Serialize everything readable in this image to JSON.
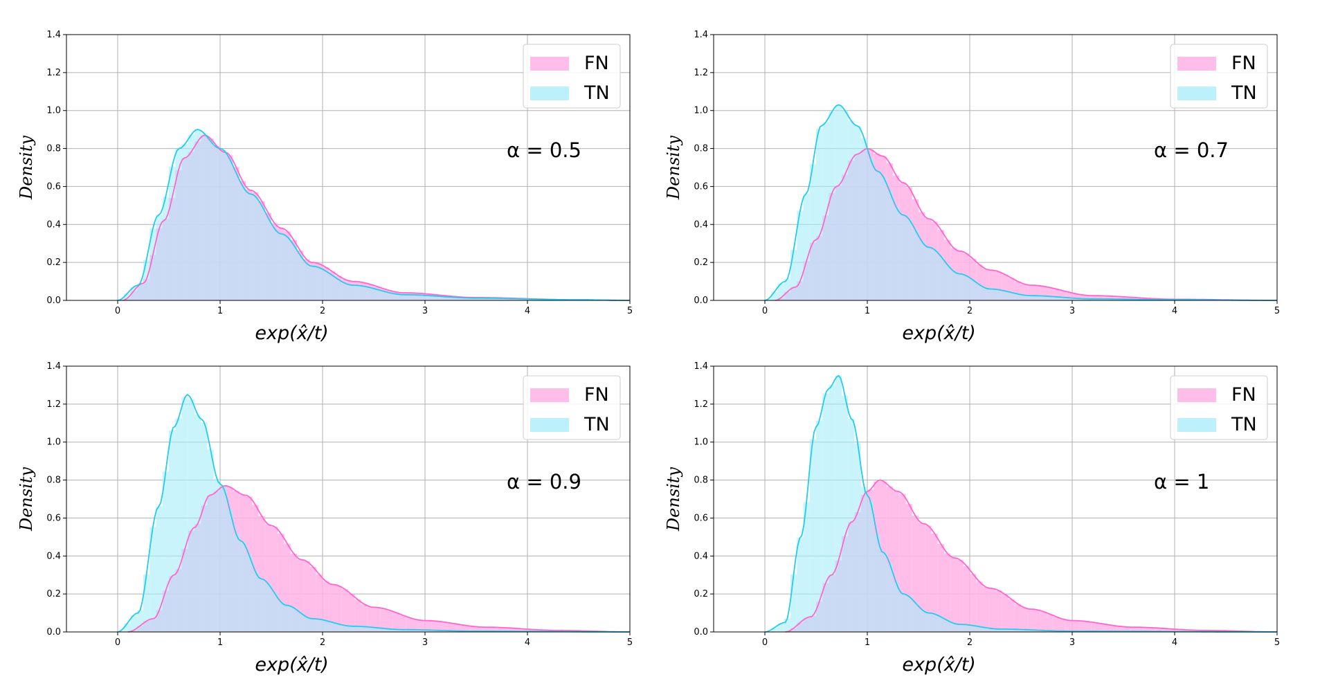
{
  "chart_data": [
    {
      "type": "histogram",
      "xlabel": "exp(x̂/t)",
      "ylabel": "Density",
      "annotation": "α = 0.5",
      "xlim": [
        -0.5,
        5
      ],
      "ylim": [
        0,
        1.4
      ],
      "x_ticks": [
        "0",
        "1",
        "2",
        "3",
        "4",
        "5"
      ],
      "y_ticks": [
        "0.0",
        "0.2",
        "0.4",
        "0.6",
        "0.8",
        "1.0",
        "1.2",
        "1.4"
      ],
      "grid": true,
      "legend_position": "upper right",
      "series": [
        {
          "name": "FN",
          "color": "#ff66cc",
          "fill": "#ffb3e6",
          "kde": [
            [
              0.05,
              0.0
            ],
            [
              0.25,
              0.09
            ],
            [
              0.45,
              0.42
            ],
            [
              0.65,
              0.75
            ],
            [
              0.85,
              0.87
            ],
            [
              1.05,
              0.78
            ],
            [
              1.3,
              0.58
            ],
            [
              1.6,
              0.38
            ],
            [
              1.9,
              0.2
            ],
            [
              2.3,
              0.1
            ],
            [
              2.8,
              0.04
            ],
            [
              3.5,
              0.015
            ],
            [
              4.5,
              0.003
            ],
            [
              5.0,
              0.0
            ]
          ]
        },
        {
          "name": "TN",
          "color": "#22ccee",
          "fill": "#a6ecfa",
          "kde": [
            [
              0.0,
              0.0
            ],
            [
              0.2,
              0.08
            ],
            [
              0.4,
              0.45
            ],
            [
              0.6,
              0.8
            ],
            [
              0.78,
              0.9
            ],
            [
              1.0,
              0.8
            ],
            [
              1.3,
              0.56
            ],
            [
              1.6,
              0.35
            ],
            [
              1.9,
              0.18
            ],
            [
              2.3,
              0.08
            ],
            [
              2.8,
              0.03
            ],
            [
              3.5,
              0.012
            ],
            [
              4.5,
              0.003
            ],
            [
              5.0,
              0.0
            ]
          ]
        }
      ]
    },
    {
      "type": "histogram",
      "xlabel": "exp(x̂/t)",
      "ylabel": "Density",
      "annotation": "α = 0.7",
      "xlim": [
        -0.5,
        5
      ],
      "ylim": [
        0,
        1.4
      ],
      "x_ticks": [
        "0",
        "1",
        "2",
        "3",
        "4",
        "5"
      ],
      "y_ticks": [
        "0.0",
        "0.2",
        "0.4",
        "0.6",
        "0.8",
        "1.0",
        "1.2",
        "1.4"
      ],
      "grid": true,
      "legend_position": "upper right",
      "series": [
        {
          "name": "FN",
          "color": "#ff66cc",
          "fill": "#ffb3e6",
          "kde": [
            [
              0.1,
              0.0
            ],
            [
              0.3,
              0.07
            ],
            [
              0.5,
              0.32
            ],
            [
              0.7,
              0.6
            ],
            [
              0.9,
              0.77
            ],
            [
              1.0,
              0.8
            ],
            [
              1.15,
              0.76
            ],
            [
              1.35,
              0.62
            ],
            [
              1.6,
              0.43
            ],
            [
              1.9,
              0.26
            ],
            [
              2.2,
              0.16
            ],
            [
              2.6,
              0.08
            ],
            [
              3.2,
              0.025
            ],
            [
              4.0,
              0.006
            ],
            [
              5.0,
              0.0
            ]
          ]
        },
        {
          "name": "TN",
          "color": "#22ccee",
          "fill": "#a6ecfa",
          "kde": [
            [
              0.0,
              0.0
            ],
            [
              0.2,
              0.1
            ],
            [
              0.4,
              0.56
            ],
            [
              0.55,
              0.92
            ],
            [
              0.72,
              1.03
            ],
            [
              0.9,
              0.92
            ],
            [
              1.1,
              0.68
            ],
            [
              1.35,
              0.45
            ],
            [
              1.6,
              0.28
            ],
            [
              1.9,
              0.14
            ],
            [
              2.2,
              0.06
            ],
            [
              2.6,
              0.025
            ],
            [
              3.2,
              0.008
            ],
            [
              4.0,
              0.003
            ],
            [
              5.0,
              0.0
            ]
          ]
        }
      ]
    },
    {
      "type": "histogram",
      "xlabel": "exp(x̂/t)",
      "ylabel": "Density",
      "annotation": "α = 0.9",
      "xlim": [
        -0.5,
        5
      ],
      "ylim": [
        0,
        1.4
      ],
      "x_ticks": [
        "0",
        "1",
        "2",
        "3",
        "4",
        "5"
      ],
      "y_ticks": [
        "0.0",
        "0.2",
        "0.4",
        "0.6",
        "0.8",
        "1.0",
        "1.2",
        "1.4"
      ],
      "grid": true,
      "legend_position": "upper right",
      "series": [
        {
          "name": "FN",
          "color": "#ff66cc",
          "fill": "#ffb3e6",
          "kde": [
            [
              0.1,
              0.0
            ],
            [
              0.35,
              0.07
            ],
            [
              0.55,
              0.3
            ],
            [
              0.75,
              0.55
            ],
            [
              0.9,
              0.72
            ],
            [
              1.05,
              0.77
            ],
            [
              1.25,
              0.72
            ],
            [
              1.5,
              0.56
            ],
            [
              1.8,
              0.38
            ],
            [
              2.1,
              0.25
            ],
            [
              2.5,
              0.13
            ],
            [
              3.0,
              0.06
            ],
            [
              3.6,
              0.025
            ],
            [
              4.3,
              0.008
            ],
            [
              5.0,
              0.0
            ]
          ]
        },
        {
          "name": "TN",
          "color": "#22ccee",
          "fill": "#a6ecfa",
          "kde": [
            [
              0.0,
              0.0
            ],
            [
              0.2,
              0.1
            ],
            [
              0.4,
              0.66
            ],
            [
              0.55,
              1.08
            ],
            [
              0.68,
              1.25
            ],
            [
              0.82,
              1.12
            ],
            [
              1.0,
              0.78
            ],
            [
              1.2,
              0.48
            ],
            [
              1.4,
              0.28
            ],
            [
              1.65,
              0.14
            ],
            [
              1.9,
              0.07
            ],
            [
              2.3,
              0.03
            ],
            [
              2.8,
              0.012
            ],
            [
              3.5,
              0.004
            ],
            [
              5.0,
              0.0
            ]
          ]
        }
      ]
    },
    {
      "type": "histogram",
      "xlabel": "exp(x̂/t)",
      "ylabel": "Density",
      "annotation": "α = 1",
      "xlim": [
        -0.5,
        5
      ],
      "ylim": [
        0,
        1.4
      ],
      "x_ticks": [
        "0",
        "1",
        "2",
        "3",
        "4",
        "5"
      ],
      "y_ticks": [
        "0.0",
        "0.2",
        "0.4",
        "0.6",
        "0.8",
        "1.0",
        "1.2",
        "1.4"
      ],
      "grid": true,
      "legend_position": "upper right",
      "series": [
        {
          "name": "FN",
          "color": "#ff66cc",
          "fill": "#ffb3e6",
          "kde": [
            [
              0.2,
              0.0
            ],
            [
              0.45,
              0.08
            ],
            [
              0.65,
              0.3
            ],
            [
              0.85,
              0.58
            ],
            [
              1.0,
              0.74
            ],
            [
              1.12,
              0.8
            ],
            [
              1.3,
              0.74
            ],
            [
              1.55,
              0.57
            ],
            [
              1.85,
              0.39
            ],
            [
              2.2,
              0.23
            ],
            [
              2.6,
              0.12
            ],
            [
              3.0,
              0.06
            ],
            [
              3.6,
              0.025
            ],
            [
              4.3,
              0.008
            ],
            [
              5.0,
              0.0
            ]
          ]
        },
        {
          "name": "TN",
          "color": "#22ccee",
          "fill": "#a6ecfa",
          "kde": [
            [
              0.0,
              0.0
            ],
            [
              0.2,
              0.05
            ],
            [
              0.35,
              0.5
            ],
            [
              0.5,
              1.08
            ],
            [
              0.62,
              1.28
            ],
            [
              0.72,
              1.35
            ],
            [
              0.85,
              1.12
            ],
            [
              1.0,
              0.72
            ],
            [
              1.15,
              0.42
            ],
            [
              1.35,
              0.2
            ],
            [
              1.6,
              0.1
            ],
            [
              1.9,
              0.04
            ],
            [
              2.3,
              0.015
            ],
            [
              3.0,
              0.004
            ],
            [
              5.0,
              0.0
            ]
          ]
        }
      ]
    }
  ]
}
